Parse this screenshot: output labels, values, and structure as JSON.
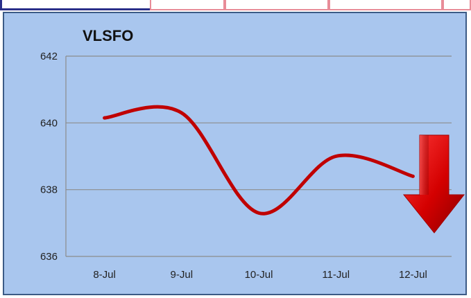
{
  "chart_data": {
    "type": "line",
    "title": "VLSFO",
    "categories": [
      "8-Jul",
      "9-Jul",
      "10-Jul",
      "11-Jul",
      "12-Jul"
    ],
    "values": [
      640.15,
      640.3,
      637.3,
      639.0,
      638.4
    ],
    "ylim": [
      636,
      642
    ],
    "yticks": [
      636,
      638,
      640,
      642
    ],
    "grid": true,
    "line_color": "#c00000",
    "trend_indicator": "down-arrow",
    "trend_color": "#d40000"
  },
  "tabs": {
    "colors": {
      "active_border": "#2a2f8a",
      "inactive_border": "#e88c98"
    }
  },
  "panel": {
    "background": "#a9c6ee",
    "gridline_color": "#8c8c8c"
  }
}
